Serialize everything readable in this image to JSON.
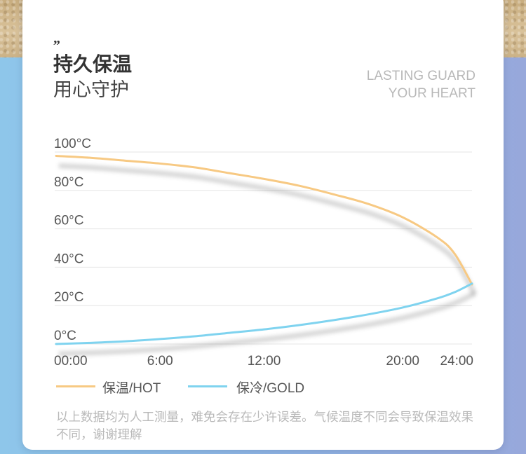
{
  "header": {
    "quote_mark": "„",
    "title_cn": "持久保温",
    "subtitle_cn": "用心守护",
    "slogan_line1": "LASTING GUARD",
    "slogan_line2": "YOUR HEART"
  },
  "colors": {
    "hot": "#f7c983",
    "cold": "#7fd3ef",
    "grid": "#e6e6e6",
    "axis_text": "#555555"
  },
  "chart_data": {
    "type": "line",
    "x": [
      "00:00",
      "6:00",
      "12:00",
      "20:00",
      "24:00"
    ],
    "x_values": [
      0,
      6,
      12,
      20,
      24
    ],
    "y_ticks": [
      "100°C",
      "80°C",
      "60°C",
      "40°C",
      "20°C",
      "0°C"
    ],
    "y_tick_values": [
      100,
      80,
      60,
      40,
      20,
      0
    ],
    "ylim": [
      0,
      100
    ],
    "series": [
      {
        "name": "保温/HOT",
        "points": [
          [
            0,
            98
          ],
          [
            2,
            97
          ],
          [
            4,
            95.5
          ],
          [
            6,
            94
          ],
          [
            8,
            92
          ],
          [
            10,
            89
          ],
          [
            12,
            86
          ],
          [
            14,
            82.5
          ],
          [
            16,
            78
          ],
          [
            18,
            73
          ],
          [
            20,
            66
          ],
          [
            22,
            55.5
          ],
          [
            23,
            47
          ],
          [
            24,
            31
          ]
        ]
      },
      {
        "name": "保冷/GOLD",
        "points": [
          [
            0,
            0
          ],
          [
            2,
            0.6
          ],
          [
            4,
            1.4
          ],
          [
            6,
            2.6
          ],
          [
            8,
            4
          ],
          [
            10,
            5.8
          ],
          [
            12,
            7.6
          ],
          [
            14,
            9.8
          ],
          [
            16,
            12.4
          ],
          [
            18,
            15.4
          ],
          [
            20,
            19
          ],
          [
            22,
            23.8
          ],
          [
            23,
            27
          ],
          [
            24,
            31.5
          ]
        ]
      }
    ],
    "grid": true,
    "legend_position": "bottom-left"
  },
  "legend": {
    "hot_label": "保温/HOT",
    "cold_label": "保冷/GOLD"
  },
  "note": "以上数据均为人工测量，难免会存在少许误差。气候温度不同会导致保温效果不同，谢谢理解"
}
